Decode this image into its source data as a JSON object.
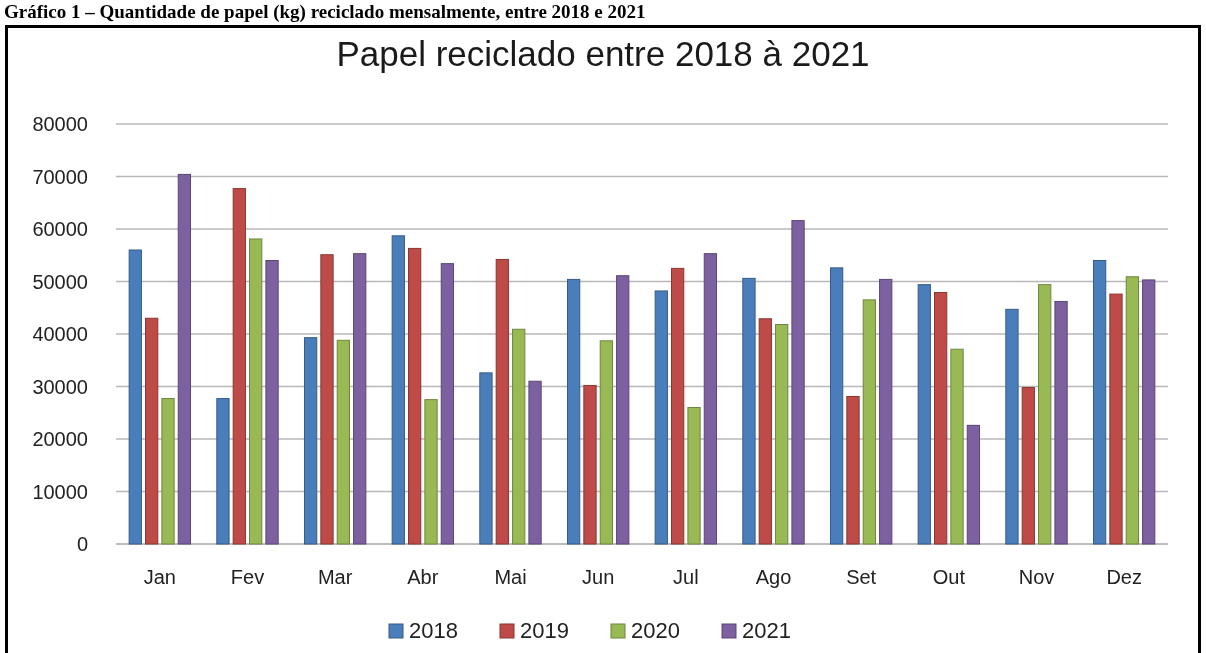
{
  "chart_data": {
    "type": "bar",
    "title": "Papel reciclado entre 2018 à 2021",
    "annotations": [
      "Gráfico 1 – Quantidade de papel (kg) reciclado mensalmente, entre 2018 e 2021"
    ],
    "categories": [
      "Jan",
      "Fev",
      "Mar",
      "Abr",
      "Mai",
      "Jun",
      "Jul",
      "Ago",
      "Set",
      "Out",
      "Nov",
      "Dez"
    ],
    "series": [
      {
        "name": "2018",
        "color": "#4a7ebb",
        "values": [
          56000,
          27700,
          39300,
          58700,
          32600,
          50400,
          48200,
          50600,
          52600,
          49400,
          44700,
          54000
        ]
      },
      {
        "name": "2019",
        "color": "#be4b48",
        "values": [
          43000,
          67700,
          55100,
          56300,
          54200,
          30200,
          52500,
          42900,
          28100,
          47900,
          29800,
          47600
        ]
      },
      {
        "name": "2020",
        "color": "#98b954",
        "values": [
          27700,
          58100,
          38800,
          27500,
          40900,
          38700,
          26000,
          41800,
          46500,
          37100,
          49400,
          50900
        ]
      },
      {
        "name": "2021",
        "color": "#7d60a0",
        "values": [
          70400,
          54000,
          55300,
          53400,
          31000,
          51100,
          55300,
          61600,
          50400,
          22600,
          46200,
          50300
        ]
      }
    ],
    "ylim": [
      0,
      80000
    ],
    "yticks": [
      0,
      10000,
      20000,
      30000,
      40000,
      50000,
      60000,
      70000,
      80000
    ],
    "grid": "y",
    "legend": "bottom"
  }
}
